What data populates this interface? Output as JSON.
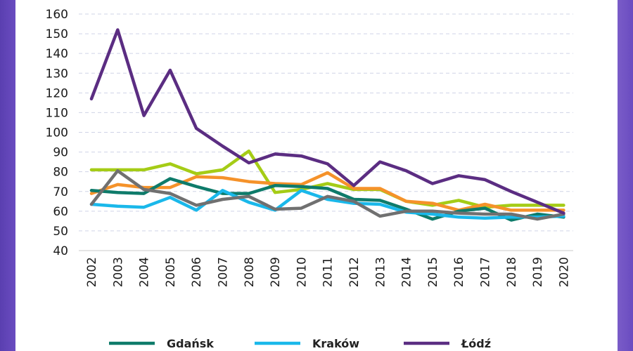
{
  "chart_data": {
    "type": "line",
    "title": "",
    "xlabel": "",
    "ylabel": "",
    "ylim": [
      40,
      160
    ],
    "y_ticks": [
      40,
      50,
      60,
      70,
      80,
      90,
      100,
      110,
      120,
      130,
      140,
      150,
      160
    ],
    "grid": "horizontal dashed",
    "legend_position": "bottom",
    "categories": [
      "2002",
      "2003",
      "2004",
      "2005",
      "2006",
      "2007",
      "2008",
      "2009",
      "2010",
      "2011",
      "2012",
      "2013",
      "2014",
      "2015",
      "2016",
      "2017",
      "2018",
      "2019",
      "2020"
    ],
    "series": [
      {
        "name": "Gdańsk",
        "color": "#0e7b6a",
        "legend": true,
        "values": [
          70.5,
          69.5,
          69,
          76.5,
          72.5,
          69,
          69,
          73,
          72.5,
          71.5,
          66,
          65.5,
          61,
          56,
          60,
          61.5,
          55.5,
          58.5,
          57
        ]
      },
      {
        "name": "Kraków",
        "color": "#1ab8ea",
        "legend": true,
        "values": [
          63.5,
          62.5,
          62,
          67,
          60.5,
          70.5,
          64.5,
          60.5,
          70.5,
          66,
          64,
          63.5,
          59.5,
          58.5,
          57,
          56.5,
          57,
          57,
          57.5
        ]
      },
      {
        "name": "Łódź",
        "color": "#5b2d82",
        "legend": true,
        "values": [
          117,
          152,
          108.5,
          131.5,
          102,
          93,
          84.5,
          89,
          88,
          84,
          73,
          85,
          80.5,
          74,
          78,
          76,
          70,
          64.5,
          59
        ]
      },
      {
        "name": "",
        "color": "#a5cc16",
        "legend": false,
        "values": [
          81,
          81,
          81,
          84,
          79,
          81,
          90.5,
          69.5,
          71,
          74,
          71,
          71,
          65,
          63,
          65.5,
          62,
          63,
          63,
          63
        ]
      },
      {
        "name": "",
        "color": "#f5922a",
        "legend": false,
        "values": [
          69,
          73.5,
          72,
          72,
          77.5,
          77,
          75,
          74,
          73.5,
          79.5,
          71.5,
          71.5,
          65,
          64,
          60.5,
          63.5,
          60.5,
          60.5,
          60.5
        ]
      },
      {
        "name": "",
        "color": "#707070",
        "legend": false,
        "values": [
          63.5,
          80.5,
          71,
          69,
          63,
          66,
          67.5,
          61,
          61.5,
          67.5,
          65,
          57.5,
          60,
          60,
          59,
          58.5,
          58.5,
          56,
          58.5
        ]
      }
    ]
  }
}
